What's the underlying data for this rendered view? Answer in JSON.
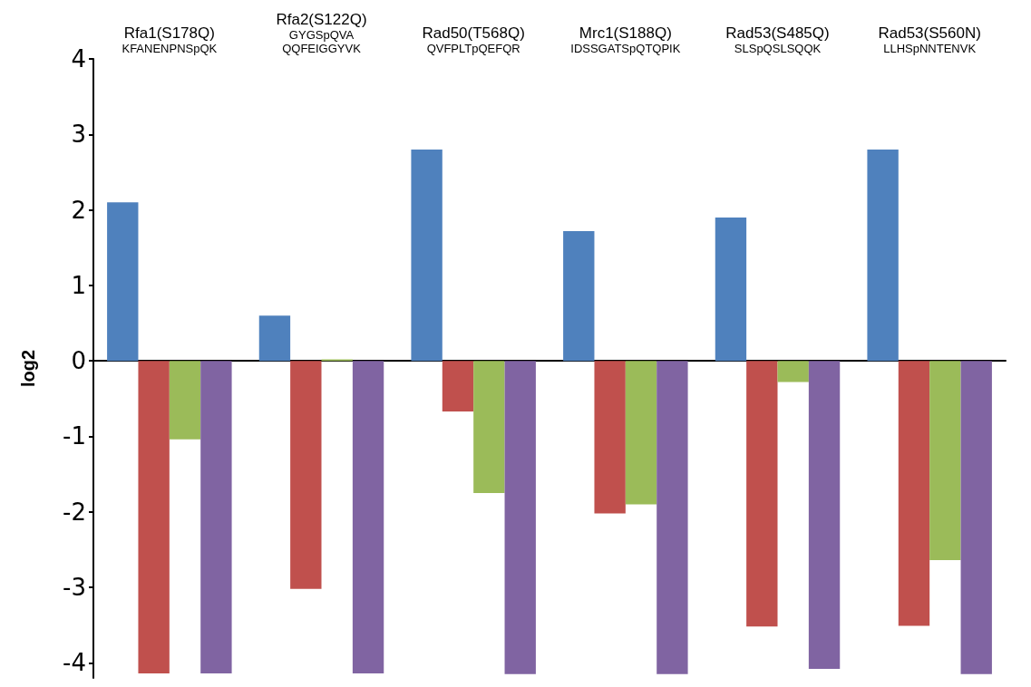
{
  "chart_data": {
    "type": "bar",
    "ylabel": "log2",
    "categories": [
      "Rfa1(S178Q)\nKFANENPNSpQK",
      "Rfa2(S122Q)\nGYGSpQVA\nQQFEIGGYVK",
      "Rad50(T568Q)\nQVFPLTpQEFQR",
      "Mrc1(S188Q)\nIDSSGATSpQTQPIK",
      "Rad53(S485Q)\nSLSpQSLSQQK",
      "Rad53(S560N)\nLLHSpNNTENVK"
    ],
    "series": [
      {
        "color": "#4f81bd",
        "values": [
          2.1,
          0.6,
          2.8,
          1.72,
          1.9,
          2.8
        ]
      },
      {
        "color": "#c0504d",
        "values": [
          -4.14,
          -3.02,
          -0.67,
          -2.02,
          -3.52,
          -3.51
        ]
      },
      {
        "color": "#9bbb59",
        "values": [
          -1.04,
          0.02,
          -1.75,
          -1.9,
          -0.28,
          -2.64
        ]
      },
      {
        "color": "#8064a2",
        "values": [
          -4.14,
          -4.14,
          -4.15,
          -4.15,
          -4.08,
          -4.15
        ]
      }
    ],
    "ylim": [
      -4.2,
      4
    ],
    "yticks": [
      -4,
      -3,
      -2,
      -1,
      0,
      1,
      2,
      3,
      4
    ]
  }
}
